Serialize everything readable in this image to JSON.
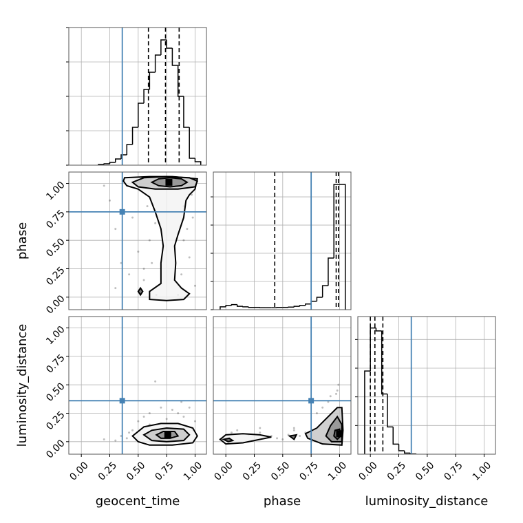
{
  "chart_data": {
    "type": "corner",
    "xlim": [
      -0.11,
      1.1
    ],
    "ylim": [
      -0.11,
      1.1
    ],
    "ticks": [
      {
        "value": 0,
        "label": "0.00"
      },
      {
        "value": 0.25,
        "label": "0.25"
      },
      {
        "value": 0.5,
        "label": "0.50"
      },
      {
        "value": 0.75,
        "label": "0.75"
      },
      {
        "value": 1,
        "label": "1.00"
      }
    ],
    "grid": true,
    "truth_color": "#4682b4",
    "line_color": "#000000",
    "parameters": [
      {
        "name": "geocent_time",
        "truth": 0.36,
        "quantiles": [
          0.59,
          0.74,
          0.86
        ],
        "bins": [
          0.15,
          0.2,
          0.25,
          0.3,
          0.35,
          0.4,
          0.45,
          0.5,
          0.55,
          0.6,
          0.65,
          0.7,
          0.75,
          0.8,
          0.85,
          0.9,
          0.95,
          1.0,
          1.05
        ],
        "counts": [
          2,
          4,
          8,
          18,
          30,
          60,
          110,
          180,
          220,
          270,
          320,
          364,
          340,
          290,
          200,
          110,
          20,
          10
        ],
        "ylim": [
          0,
          400
        ],
        "yticks": [
          0,
          100,
          200,
          300,
          400
        ]
      },
      {
        "name": "phase",
        "truth": 0.75,
        "quantiles": [
          0.43,
          0.97,
          0.99
        ],
        "bins": [
          -0.05,
          0,
          0.05,
          0.1,
          0.15,
          0.2,
          0.25,
          0.3,
          0.35,
          0.4,
          0.45,
          0.5,
          0.55,
          0.6,
          0.65,
          0.7,
          0.75,
          0.8,
          0.85,
          0.9,
          0.95,
          1.0,
          1.05
        ],
        "counts": [
          10,
          15,
          18,
          12,
          10,
          8,
          8,
          7,
          7,
          7,
          8,
          8,
          9,
          12,
          15,
          20,
          30,
          44,
          85,
          183,
          444,
          444
        ],
        "ylim": [
          0,
          488
        ],
        "yticks": [
          0,
          100,
          200,
          300,
          400
        ]
      },
      {
        "name": "luminosity_distance",
        "truth": 0.36,
        "quantiles": [
          0.0,
          0.04,
          0.11
        ],
        "bins": [
          -0.05,
          0,
          0.05,
          0.1,
          0.15,
          0.2,
          0.25,
          0.3,
          0.35,
          0.4
        ],
        "counts": [
          290,
          440,
          430,
          210,
          95,
          35,
          12,
          4,
          1
        ],
        "ylim": [
          0,
          480
        ],
        "yticks": [
          100,
          200,
          300,
          400
        ]
      }
    ],
    "pairs": [
      {
        "points": {
          "x": [
            0.2,
            0.25,
            0.3,
            0.35,
            0.42,
            0.45,
            0.5,
            0.55,
            0.6,
            0.62,
            0.65,
            0.88,
            0.9,
            0.95,
            0.98,
            1.0,
            0.58,
            0.66,
            0.9,
            0.93,
            0.3,
            0.97,
            0.55,
            0.85
          ],
          "y": [
            0.98,
            0.85,
            0.6,
            0.3,
            0.2,
            0.7,
            0.4,
            0.15,
            0.5,
            0.3,
            0.65,
            0.2,
            0.5,
            0.35,
            0.7,
            0.1,
            0.8,
            0.02,
            0.8,
            0.6,
            0.08,
            0.9,
            0.25,
            0.02
          ]
        },
        "contours": [
          {
            "x": [
              0.38,
              0.6,
              0.8,
              1.02,
              1.0,
              0.95,
              0.92,
              0.9,
              0.85,
              0.82,
              0.83,
              0.82,
              0.88,
              0.95,
              0.9,
              0.75,
              0.6,
              0.6,
              0.7,
              0.7,
              0.72,
              0.7,
              0.65,
              0.6,
              0.5,
              0.4,
              0.37
            ],
            "y": [
              1.05,
              1.06,
              1.06,
              1.04,
              0.95,
              0.9,
              0.85,
              0.7,
              0.55,
              0.45,
              0.3,
              0.15,
              0.08,
              0.03,
              -0.02,
              -0.03,
              -0.02,
              0.05,
              0.12,
              0.3,
              0.45,
              0.6,
              0.75,
              0.88,
              0.95,
              0.98,
              1.02
            ]
          },
          {
            "x": [
              0.45,
              0.5,
              0.65,
              0.85,
              1.0,
              1.02,
              0.95,
              0.75,
              0.55
            ],
            "y": [
              1.01,
              0.97,
              0.95,
              0.95,
              0.97,
              1.02,
              1.05,
              1.06,
              1.05
            ]
          },
          {
            "x": [
              0.62,
              0.68,
              0.78,
              0.88,
              0.93,
              0.88,
              0.78,
              0.68
            ],
            "y": [
              1.01,
              0.98,
              0.97,
              0.98,
              1.01,
              1.04,
              1.05,
              1.04
            ]
          },
          {
            "x": [
              0.5,
              0.52,
              0.54,
              0.52
            ],
            "y": [
              0.05,
              0.02,
              0.05,
              0.08
            ]
          }
        ],
        "peak": {
          "x": 0.77,
          "y": 1.01
        }
      },
      {
        "points": {
          "x": [
            0.2,
            0.3,
            0.35,
            0.4,
            0.45,
            0.5,
            0.55,
            0.6,
            0.7,
            0.8,
            0.9,
            0.95,
            1.0,
            0.65,
            0.75,
            0.85,
            0.98,
            0.42,
            0.6,
            0.88
          ],
          "y": [
            0.02,
            0.01,
            0.05,
            0.03,
            0.1,
            0.18,
            0.22,
            0.25,
            0.3,
            0.28,
            0.22,
            0.3,
            0.18,
            0.53,
            0.2,
            0.25,
            0.1,
            0.08,
            0.15,
            0.35
          ]
        },
        "contours": [
          {
            "x": [
              0.45,
              0.5,
              0.6,
              0.8,
              0.98,
              1.02,
              0.98,
              0.85,
              0.7,
              0.55
            ],
            "y": [
              0.05,
              0.0,
              -0.03,
              -0.03,
              -0.01,
              0.05,
              0.12,
              0.16,
              0.16,
              0.13
            ]
          },
          {
            "x": [
              0.55,
              0.62,
              0.75,
              0.9,
              0.95,
              0.9,
              0.75,
              0.62
            ],
            "y": [
              0.06,
              0.01,
              0.0,
              0.01,
              0.06,
              0.11,
              0.12,
              0.1
            ]
          },
          {
            "x": [
              0.66,
              0.7,
              0.78,
              0.85,
              0.82,
              0.72
            ],
            "y": [
              0.06,
              0.03,
              0.03,
              0.05,
              0.09,
              0.09
            ]
          }
        ],
        "peak": {
          "x": 0.76,
          "y": 0.06
        }
      },
      {
        "points": {
          "x": [
            -0.05,
            0.05,
            0.1,
            0.2,
            0.3,
            0.4,
            0.45,
            0.5,
            0.55,
            0.6,
            0.65,
            0.7,
            0.8,
            0.85,
            0.9,
            0.97,
            0.99,
            1.0,
            0.98,
            0.3,
            0.6,
            0.92
          ],
          "y": [
            0.02,
            0.08,
            0.1,
            0.06,
            0.08,
            0.05,
            0.03,
            0.02,
            0.06,
            0.1,
            0.05,
            0.08,
            0.25,
            0.3,
            0.35,
            0.42,
            0.5,
            0.2,
            0.45,
            0.12,
            0.12,
            0.4
          ]
        },
        "contours": [
          {
            "x": [
              -0.05,
              0.0,
              0.15,
              0.3,
              0.4,
              0.3,
              0.15,
              0.0
            ],
            "y": [
              0.02,
              -0.02,
              -0.01,
              0.02,
              0.04,
              0.06,
              0.07,
              0.06
            ]
          },
          {
            "x": [
              0.72,
              0.85,
              1.02,
              1.03,
              1.02,
              0.98,
              0.9,
              0.8,
              0.7
            ],
            "y": [
              0.03,
              -0.02,
              -0.03,
              0.1,
              0.3,
              0.3,
              0.22,
              0.12,
              0.07
            ]
          },
          {
            "x": [
              0.88,
              0.93,
              1.02,
              1.02,
              0.98,
              0.92
            ],
            "y": [
              0.05,
              0.0,
              0.0,
              0.15,
              0.22,
              0.14
            ]
          },
          {
            "x": [
              0.95,
              0.98,
              1.01,
              1.0,
              0.96
            ],
            "y": [
              0.05,
              0.02,
              0.05,
              0.11,
              0.1
            ]
          },
          {
            "x": [
              -0.02,
              0.02,
              0.06,
              0.03
            ],
            "y": [
              0.02,
              0.0,
              0.01,
              0.03
            ]
          },
          {
            "x": [
              0.56,
              0.6,
              0.62
            ],
            "y": [
              0.05,
              0.02,
              0.06
            ]
          }
        ],
        "peak": {
          "x": 1.0,
          "y": 0.07
        }
      }
    ]
  }
}
